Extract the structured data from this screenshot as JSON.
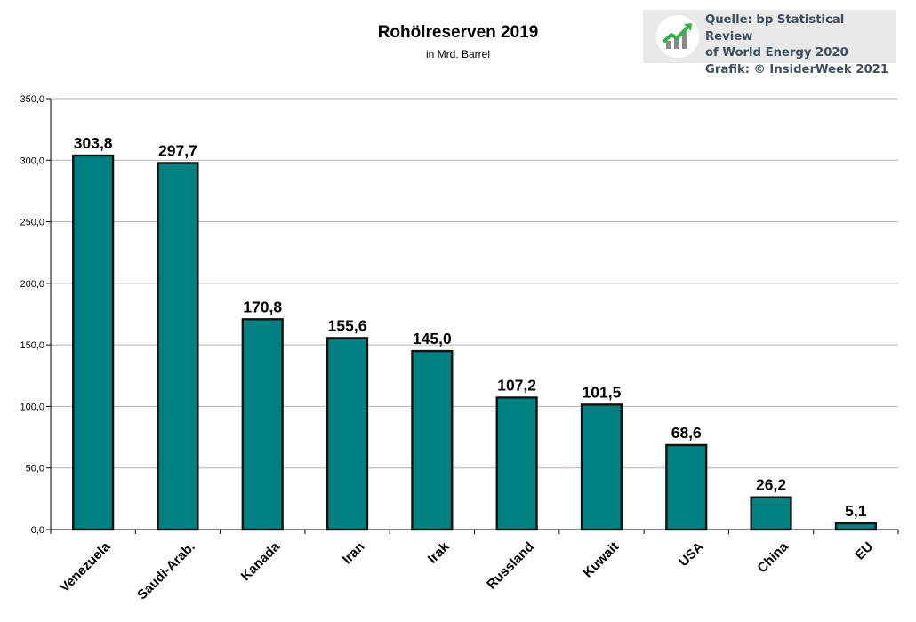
{
  "source": {
    "lines": [
      "Quelle: bp Statistical Review",
      "of World Energy 2020",
      "Grafik: © InsiderWeek 2021"
    ],
    "logo_icon": "rising-chart-icon"
  },
  "chart_data": {
    "type": "bar",
    "title": "Rohölreserven 2019",
    "subtitle": "in Mrd. Barrel",
    "xlabel": "",
    "ylabel": "",
    "categories": [
      "Venezuela",
      "Saudi-Arab.",
      "Kanada",
      "Iran",
      "Irak",
      "Russland",
      "Kuwait",
      "USA",
      "China",
      "EU"
    ],
    "values": [
      303.8,
      297.7,
      170.8,
      155.6,
      145.0,
      107.2,
      101.5,
      68.6,
      26.2,
      5.1
    ],
    "value_labels": [
      "303,8",
      "297,7",
      "170,8",
      "155,6",
      "145,0",
      "107,2",
      "101,5",
      "68,6",
      "26,2",
      "5,1"
    ],
    "ylim": [
      0,
      350
    ],
    "yticks": [
      0,
      50,
      100,
      150,
      200,
      250,
      300,
      350
    ],
    "ytick_labels": [
      "0,0",
      "50,0",
      "100,0",
      "150,0",
      "200,0",
      "250,0",
      "300,0",
      "350,0"
    ],
    "grid": true,
    "legend": "none",
    "bar_color": "#008080",
    "bar_border_color": "#111111"
  }
}
